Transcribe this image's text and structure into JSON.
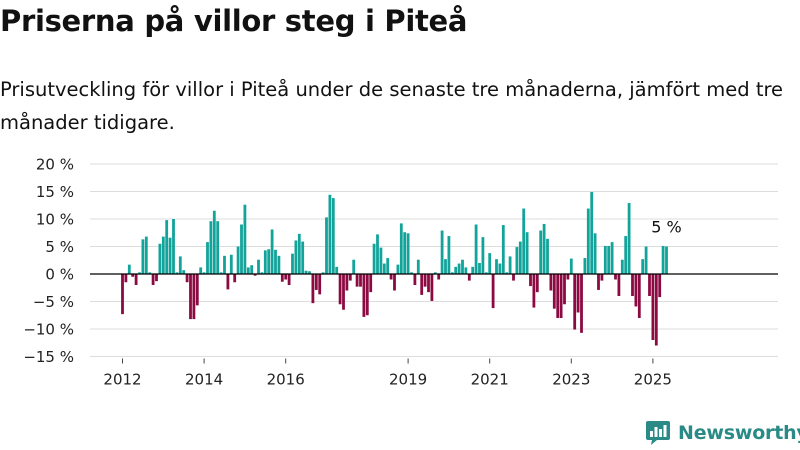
{
  "title": "Priserna på villor steg i Piteå",
  "subtitle": "Prisutveckling för villor i Piteå under de senaste tre månaderna, jämfört med tre månader tidigare.",
  "brand": {
    "name": "Newsworthy",
    "logo_icon": "bar-chart-logo-icon"
  },
  "colors": {
    "positive": "#12a39a",
    "negative": "#8c0a42",
    "grid": "#dddddd",
    "axis": "#000000",
    "brand": "#2a8a86"
  },
  "chart_data": {
    "type": "bar",
    "y_unit": "%",
    "ylim": [
      -15,
      20
    ],
    "y_ticks": [
      20,
      15,
      10,
      5,
      0,
      -5,
      -10,
      -15
    ],
    "y_tick_labels": [
      "20 %",
      "15 %",
      "10 %",
      "5 %",
      "0 %",
      "−5 %",
      "−10 %",
      "−15 %"
    ],
    "x_ticks": [
      {
        "label": "2012",
        "date": "2012-01"
      },
      {
        "label": "2014",
        "date": "2014-01"
      },
      {
        "label": "2016",
        "date": "2016-01"
      },
      {
        "label": "2019",
        "date": "2019-01"
      },
      {
        "label": "2021",
        "date": "2021-01"
      },
      {
        "label": "2023",
        "date": "2023-01"
      },
      {
        "label": "2025",
        "date": "2025-01"
      }
    ],
    "last_value_label": "5 %",
    "series": [
      {
        "values": [
          {
            "date": "2012-01",
            "value": -7.3
          },
          {
            "date": "2012-02",
            "value": -1.5
          },
          {
            "date": "2012-03",
            "value": 1.7
          },
          {
            "date": "2012-04",
            "value": -0.5
          },
          {
            "date": "2012-05",
            "value": -2.0
          },
          {
            "date": "2012-06",
            "value": 0.3
          },
          {
            "date": "2012-07",
            "value": 6.3
          },
          {
            "date": "2012-08",
            "value": 6.8
          },
          {
            "date": "2012-09",
            "value": 0.3
          },
          {
            "date": "2012-10",
            "value": -2.0
          },
          {
            "date": "2012-11",
            "value": -1.3
          },
          {
            "date": "2012-12",
            "value": 5.5
          },
          {
            "date": "2013-01",
            "value": 6.8
          },
          {
            "date": "2013-02",
            "value": 9.8
          },
          {
            "date": "2013-03",
            "value": 6.6
          },
          {
            "date": "2013-04",
            "value": 10.0
          },
          {
            "date": "2013-05",
            "value": 0.3
          },
          {
            "date": "2013-06",
            "value": 3.2
          },
          {
            "date": "2013-07",
            "value": 0.7
          },
          {
            "date": "2013-08",
            "value": -1.5
          },
          {
            "date": "2013-09",
            "value": -8.2
          },
          {
            "date": "2013-10",
            "value": -8.2
          },
          {
            "date": "2013-11",
            "value": -5.7
          },
          {
            "date": "2013-12",
            "value": 1.2
          },
          {
            "date": "2014-01",
            "value": 0.3
          },
          {
            "date": "2014-02",
            "value": 5.8
          },
          {
            "date": "2014-03",
            "value": 9.6
          },
          {
            "date": "2014-04",
            "value": 11.5
          },
          {
            "date": "2014-05",
            "value": 9.6
          },
          {
            "date": "2014-06",
            "value": 0.3
          },
          {
            "date": "2014-07",
            "value": 3.3
          },
          {
            "date": "2014-08",
            "value": -2.8
          },
          {
            "date": "2014-09",
            "value": 3.5
          },
          {
            "date": "2014-10",
            "value": -1.5
          },
          {
            "date": "2014-11",
            "value": 5.0
          },
          {
            "date": "2014-12",
            "value": 9.0
          },
          {
            "date": "2015-01",
            "value": 12.6
          },
          {
            "date": "2015-02",
            "value": 1.2
          },
          {
            "date": "2015-03",
            "value": 1.6
          },
          {
            "date": "2015-04",
            "value": -0.3
          },
          {
            "date": "2015-05",
            "value": 2.6
          },
          {
            "date": "2015-06",
            "value": 0.3
          },
          {
            "date": "2015-07",
            "value": 4.3
          },
          {
            "date": "2015-08",
            "value": 4.5
          },
          {
            "date": "2015-09",
            "value": 8.1
          },
          {
            "date": "2015-10",
            "value": 4.4
          },
          {
            "date": "2015-11",
            "value": 3.3
          },
          {
            "date": "2015-12",
            "value": -1.4
          },
          {
            "date": "2016-01",
            "value": -1.0
          },
          {
            "date": "2016-02",
            "value": -2.0
          },
          {
            "date": "2016-03",
            "value": 3.7
          },
          {
            "date": "2016-04",
            "value": 6.1
          },
          {
            "date": "2016-05",
            "value": 7.3
          },
          {
            "date": "2016-06",
            "value": 5.9
          },
          {
            "date": "2016-07",
            "value": 0.6
          },
          {
            "date": "2016-08",
            "value": 0.5
          },
          {
            "date": "2016-09",
            "value": -5.3
          },
          {
            "date": "2016-10",
            "value": -2.9
          },
          {
            "date": "2016-11",
            "value": -3.7
          },
          {
            "date": "2016-12",
            "value": 0.3
          },
          {
            "date": "2017-01",
            "value": 10.3
          },
          {
            "date": "2017-02",
            "value": 14.4
          },
          {
            "date": "2017-03",
            "value": 13.8
          },
          {
            "date": "2017-04",
            "value": 1.3
          },
          {
            "date": "2017-05",
            "value": -5.5
          },
          {
            "date": "2017-06",
            "value": -6.5
          },
          {
            "date": "2017-07",
            "value": -3.0
          },
          {
            "date": "2017-08",
            "value": -1.2
          },
          {
            "date": "2017-09",
            "value": 2.6
          },
          {
            "date": "2017-10",
            "value": -2.3
          },
          {
            "date": "2017-11",
            "value": -2.3
          },
          {
            "date": "2017-12",
            "value": -7.8
          },
          {
            "date": "2018-01",
            "value": -7.5
          },
          {
            "date": "2018-02",
            "value": -3.3
          },
          {
            "date": "2018-03",
            "value": 5.5
          },
          {
            "date": "2018-04",
            "value": 7.2
          },
          {
            "date": "2018-05",
            "value": 4.8
          },
          {
            "date": "2018-06",
            "value": 1.9
          },
          {
            "date": "2018-07",
            "value": 2.9
          },
          {
            "date": "2018-08",
            "value": -1.0
          },
          {
            "date": "2018-09",
            "value": -3.0
          },
          {
            "date": "2018-10",
            "value": 1.7
          },
          {
            "date": "2018-11",
            "value": 9.2
          },
          {
            "date": "2018-12",
            "value": 7.6
          },
          {
            "date": "2019-01",
            "value": 7.4
          },
          {
            "date": "2019-02",
            "value": 0.3
          },
          {
            "date": "2019-03",
            "value": -2.0
          },
          {
            "date": "2019-04",
            "value": 2.6
          },
          {
            "date": "2019-05",
            "value": -3.8
          },
          {
            "date": "2019-06",
            "value": -2.3
          },
          {
            "date": "2019-07",
            "value": -3.3
          },
          {
            "date": "2019-08",
            "value": -4.9
          },
          {
            "date": "2019-09",
            "value": 0.3
          },
          {
            "date": "2019-10",
            "value": -1.0
          },
          {
            "date": "2019-11",
            "value": 7.9
          },
          {
            "date": "2019-12",
            "value": 2.7
          },
          {
            "date": "2020-01",
            "value": 6.9
          },
          {
            "date": "2020-02",
            "value": 0.3
          },
          {
            "date": "2020-03",
            "value": 1.3
          },
          {
            "date": "2020-04",
            "value": 1.9
          },
          {
            "date": "2020-05",
            "value": 2.6
          },
          {
            "date": "2020-06",
            "value": 1.2
          },
          {
            "date": "2020-07",
            "value": -1.2
          },
          {
            "date": "2020-08",
            "value": 1.3
          },
          {
            "date": "2020-09",
            "value": 9.0
          },
          {
            "date": "2020-10",
            "value": 2.0
          },
          {
            "date": "2020-11",
            "value": 6.7
          },
          {
            "date": "2020-12",
            "value": 0.3
          },
          {
            "date": "2021-01",
            "value": 3.8
          },
          {
            "date": "2021-02",
            "value": -6.2
          },
          {
            "date": "2021-03",
            "value": 2.7
          },
          {
            "date": "2021-04",
            "value": 1.9
          },
          {
            "date": "2021-05",
            "value": 8.9
          },
          {
            "date": "2021-06",
            "value": 0.3
          },
          {
            "date": "2021-07",
            "value": 3.2
          },
          {
            "date": "2021-08",
            "value": -1.2
          },
          {
            "date": "2021-09",
            "value": 4.9
          },
          {
            "date": "2021-10",
            "value": 5.9
          },
          {
            "date": "2021-11",
            "value": 11.9
          },
          {
            "date": "2021-12",
            "value": 7.6
          },
          {
            "date": "2022-01",
            "value": -2.2
          },
          {
            "date": "2022-02",
            "value": -6.1
          },
          {
            "date": "2022-03",
            "value": -3.3
          },
          {
            "date": "2022-04",
            "value": 7.9
          },
          {
            "date": "2022-05",
            "value": 9.1
          },
          {
            "date": "2022-06",
            "value": 6.4
          },
          {
            "date": "2022-07",
            "value": -3.0
          },
          {
            "date": "2022-08",
            "value": -6.3
          },
          {
            "date": "2022-09",
            "value": -8.0
          },
          {
            "date": "2022-10",
            "value": -8.0
          },
          {
            "date": "2022-11",
            "value": -5.5
          },
          {
            "date": "2022-12",
            "value": -1.0
          },
          {
            "date": "2023-01",
            "value": 2.8
          },
          {
            "date": "2023-02",
            "value": -10.1
          },
          {
            "date": "2023-03",
            "value": -7.0
          },
          {
            "date": "2023-04",
            "value": -10.7
          },
          {
            "date": "2023-05",
            "value": 2.9
          },
          {
            "date": "2023-06",
            "value": 11.9
          },
          {
            "date": "2023-07",
            "value": 14.9
          },
          {
            "date": "2023-08",
            "value": 7.4
          },
          {
            "date": "2023-09",
            "value": -2.9
          },
          {
            "date": "2023-10",
            "value": -1.2
          },
          {
            "date": "2023-11",
            "value": 5.1
          },
          {
            "date": "2023-12",
            "value": 5.1
          },
          {
            "date": "2024-01",
            "value": 5.8
          },
          {
            "date": "2024-02",
            "value": -1.0
          },
          {
            "date": "2024-03",
            "value": -4.0
          },
          {
            "date": "2024-04",
            "value": 2.6
          },
          {
            "date": "2024-05",
            "value": 6.9
          },
          {
            "date": "2024-06",
            "value": 12.9
          },
          {
            "date": "2024-07",
            "value": -4.0
          },
          {
            "date": "2024-08",
            "value": -5.9
          },
          {
            "date": "2024-09",
            "value": -8.0
          },
          {
            "date": "2024-10",
            "value": 2.7
          },
          {
            "date": "2024-11",
            "value": 5.0
          },
          {
            "date": "2024-12",
            "value": -4.0
          },
          {
            "date": "2025-01",
            "value": -12.0
          },
          {
            "date": "2025-02",
            "value": -13.0
          },
          {
            "date": "2025-03",
            "value": -4.2
          },
          {
            "date": "2025-04",
            "value": 5.1
          },
          {
            "date": "2025-05",
            "value": 5.0
          }
        ]
      }
    ]
  }
}
